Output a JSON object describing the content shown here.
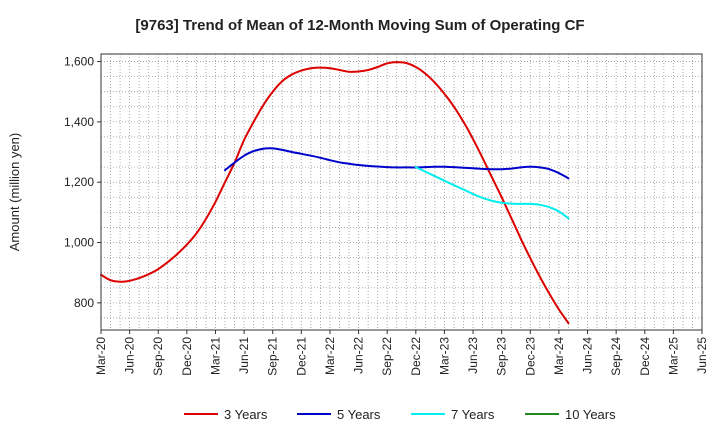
{
  "chart_data": {
    "type": "line",
    "title": "[9763]  Trend of Mean of 12-Month Moving Sum of Operating CF",
    "xlabel": "",
    "ylabel": "Amount (million yen)",
    "ylim": [
      710,
      1625
    ],
    "yticks": [
      800,
      1000,
      1200,
      1400,
      1600
    ],
    "ytick_labels": [
      "800",
      "1,000",
      "1,200",
      "1,400",
      "1,600"
    ],
    "x_tick_labels": [
      "Mar-20",
      "Jun-20",
      "Sep-20",
      "Dec-20",
      "Mar-21",
      "Jun-21",
      "Sep-21",
      "Dec-21",
      "Mar-22",
      "Jun-22",
      "Sep-22",
      "Dec-22",
      "Mar-23",
      "Jun-23",
      "Sep-23",
      "Dec-23",
      "Mar-24",
      "Jun-24",
      "Sep-24",
      "Dec-24",
      "Mar-25",
      "Jun-25"
    ],
    "grid": true,
    "legend_position": "bottom",
    "series": [
      {
        "name": "3 Years",
        "color": "#dd0000",
        "points": [
          [
            0,
            893
          ],
          [
            1,
            875
          ],
          [
            2,
            870
          ],
          [
            3,
            873
          ],
          [
            4,
            882
          ],
          [
            5,
            895
          ],
          [
            6,
            912
          ],
          [
            7,
            935
          ],
          [
            8,
            962
          ],
          [
            9,
            993
          ],
          [
            10,
            1030
          ],
          [
            11,
            1078
          ],
          [
            12,
            1135
          ],
          [
            13,
            1200
          ],
          [
            14,
            1265
          ],
          [
            15,
            1340
          ],
          [
            16,
            1400
          ],
          [
            17,
            1455
          ],
          [
            18,
            1500
          ],
          [
            19,
            1535
          ],
          [
            20,
            1557
          ],
          [
            21,
            1570
          ],
          [
            22,
            1578
          ],
          [
            23,
            1580
          ],
          [
            24,
            1578
          ],
          [
            25,
            1572
          ],
          [
            26,
            1566
          ],
          [
            27,
            1567
          ],
          [
            28,
            1572
          ],
          [
            29,
            1582
          ],
          [
            30,
            1594
          ],
          [
            31,
            1598
          ],
          [
            32,
            1595
          ],
          [
            33,
            1582
          ],
          [
            34,
            1560
          ],
          [
            35,
            1530
          ],
          [
            36,
            1493
          ],
          [
            37,
            1450
          ],
          [
            38,
            1400
          ],
          [
            39,
            1343
          ],
          [
            40,
            1280
          ],
          [
            41,
            1215
          ],
          [
            42,
            1150
          ],
          [
            43,
            1082
          ],
          [
            44,
            1013
          ],
          [
            45,
            948
          ],
          [
            46,
            887
          ],
          [
            47,
            830
          ],
          [
            48,
            778
          ],
          [
            49,
            733
          ]
        ]
      },
      {
        "name": "5 Years",
        "color": "#0000cc",
        "points": [
          [
            13,
            1240
          ],
          [
            14,
            1265
          ],
          [
            15,
            1288
          ],
          [
            16,
            1303
          ],
          [
            17,
            1311
          ],
          [
            18,
            1312
          ],
          [
            19,
            1307
          ],
          [
            20,
            1300
          ],
          [
            21,
            1294
          ],
          [
            22,
            1288
          ],
          [
            23,
            1281
          ],
          [
            24,
            1273
          ],
          [
            25,
            1266
          ],
          [
            26,
            1261
          ],
          [
            27,
            1257
          ],
          [
            28,
            1254
          ],
          [
            29,
            1252
          ],
          [
            30,
            1250
          ],
          [
            31,
            1249
          ],
          [
            32,
            1249
          ],
          [
            33,
            1249
          ],
          [
            34,
            1250
          ],
          [
            35,
            1251
          ],
          [
            36,
            1251
          ],
          [
            37,
            1250
          ],
          [
            38,
            1248
          ],
          [
            39,
            1246
          ],
          [
            40,
            1244
          ],
          [
            41,
            1243
          ],
          [
            42,
            1243
          ],
          [
            43,
            1245
          ],
          [
            44,
            1249
          ],
          [
            45,
            1251
          ],
          [
            46,
            1249
          ],
          [
            47,
            1243
          ],
          [
            48,
            1230
          ],
          [
            49,
            1213
          ]
        ]
      },
      {
        "name": "7 Years",
        "color": "#00eeee",
        "points": [
          [
            33,
            1250
          ],
          [
            34,
            1235
          ],
          [
            35,
            1220
          ],
          [
            36,
            1205
          ],
          [
            37,
            1190
          ],
          [
            38,
            1176
          ],
          [
            39,
            1161
          ],
          [
            40,
            1148
          ],
          [
            41,
            1138
          ],
          [
            42,
            1132
          ],
          [
            43,
            1129
          ],
          [
            44,
            1128
          ],
          [
            45,
            1128
          ],
          [
            46,
            1125
          ],
          [
            47,
            1117
          ],
          [
            48,
            1103
          ],
          [
            49,
            1080
          ]
        ]
      },
      {
        "name": "10 Years",
        "color": "#228822",
        "points": []
      }
    ]
  }
}
